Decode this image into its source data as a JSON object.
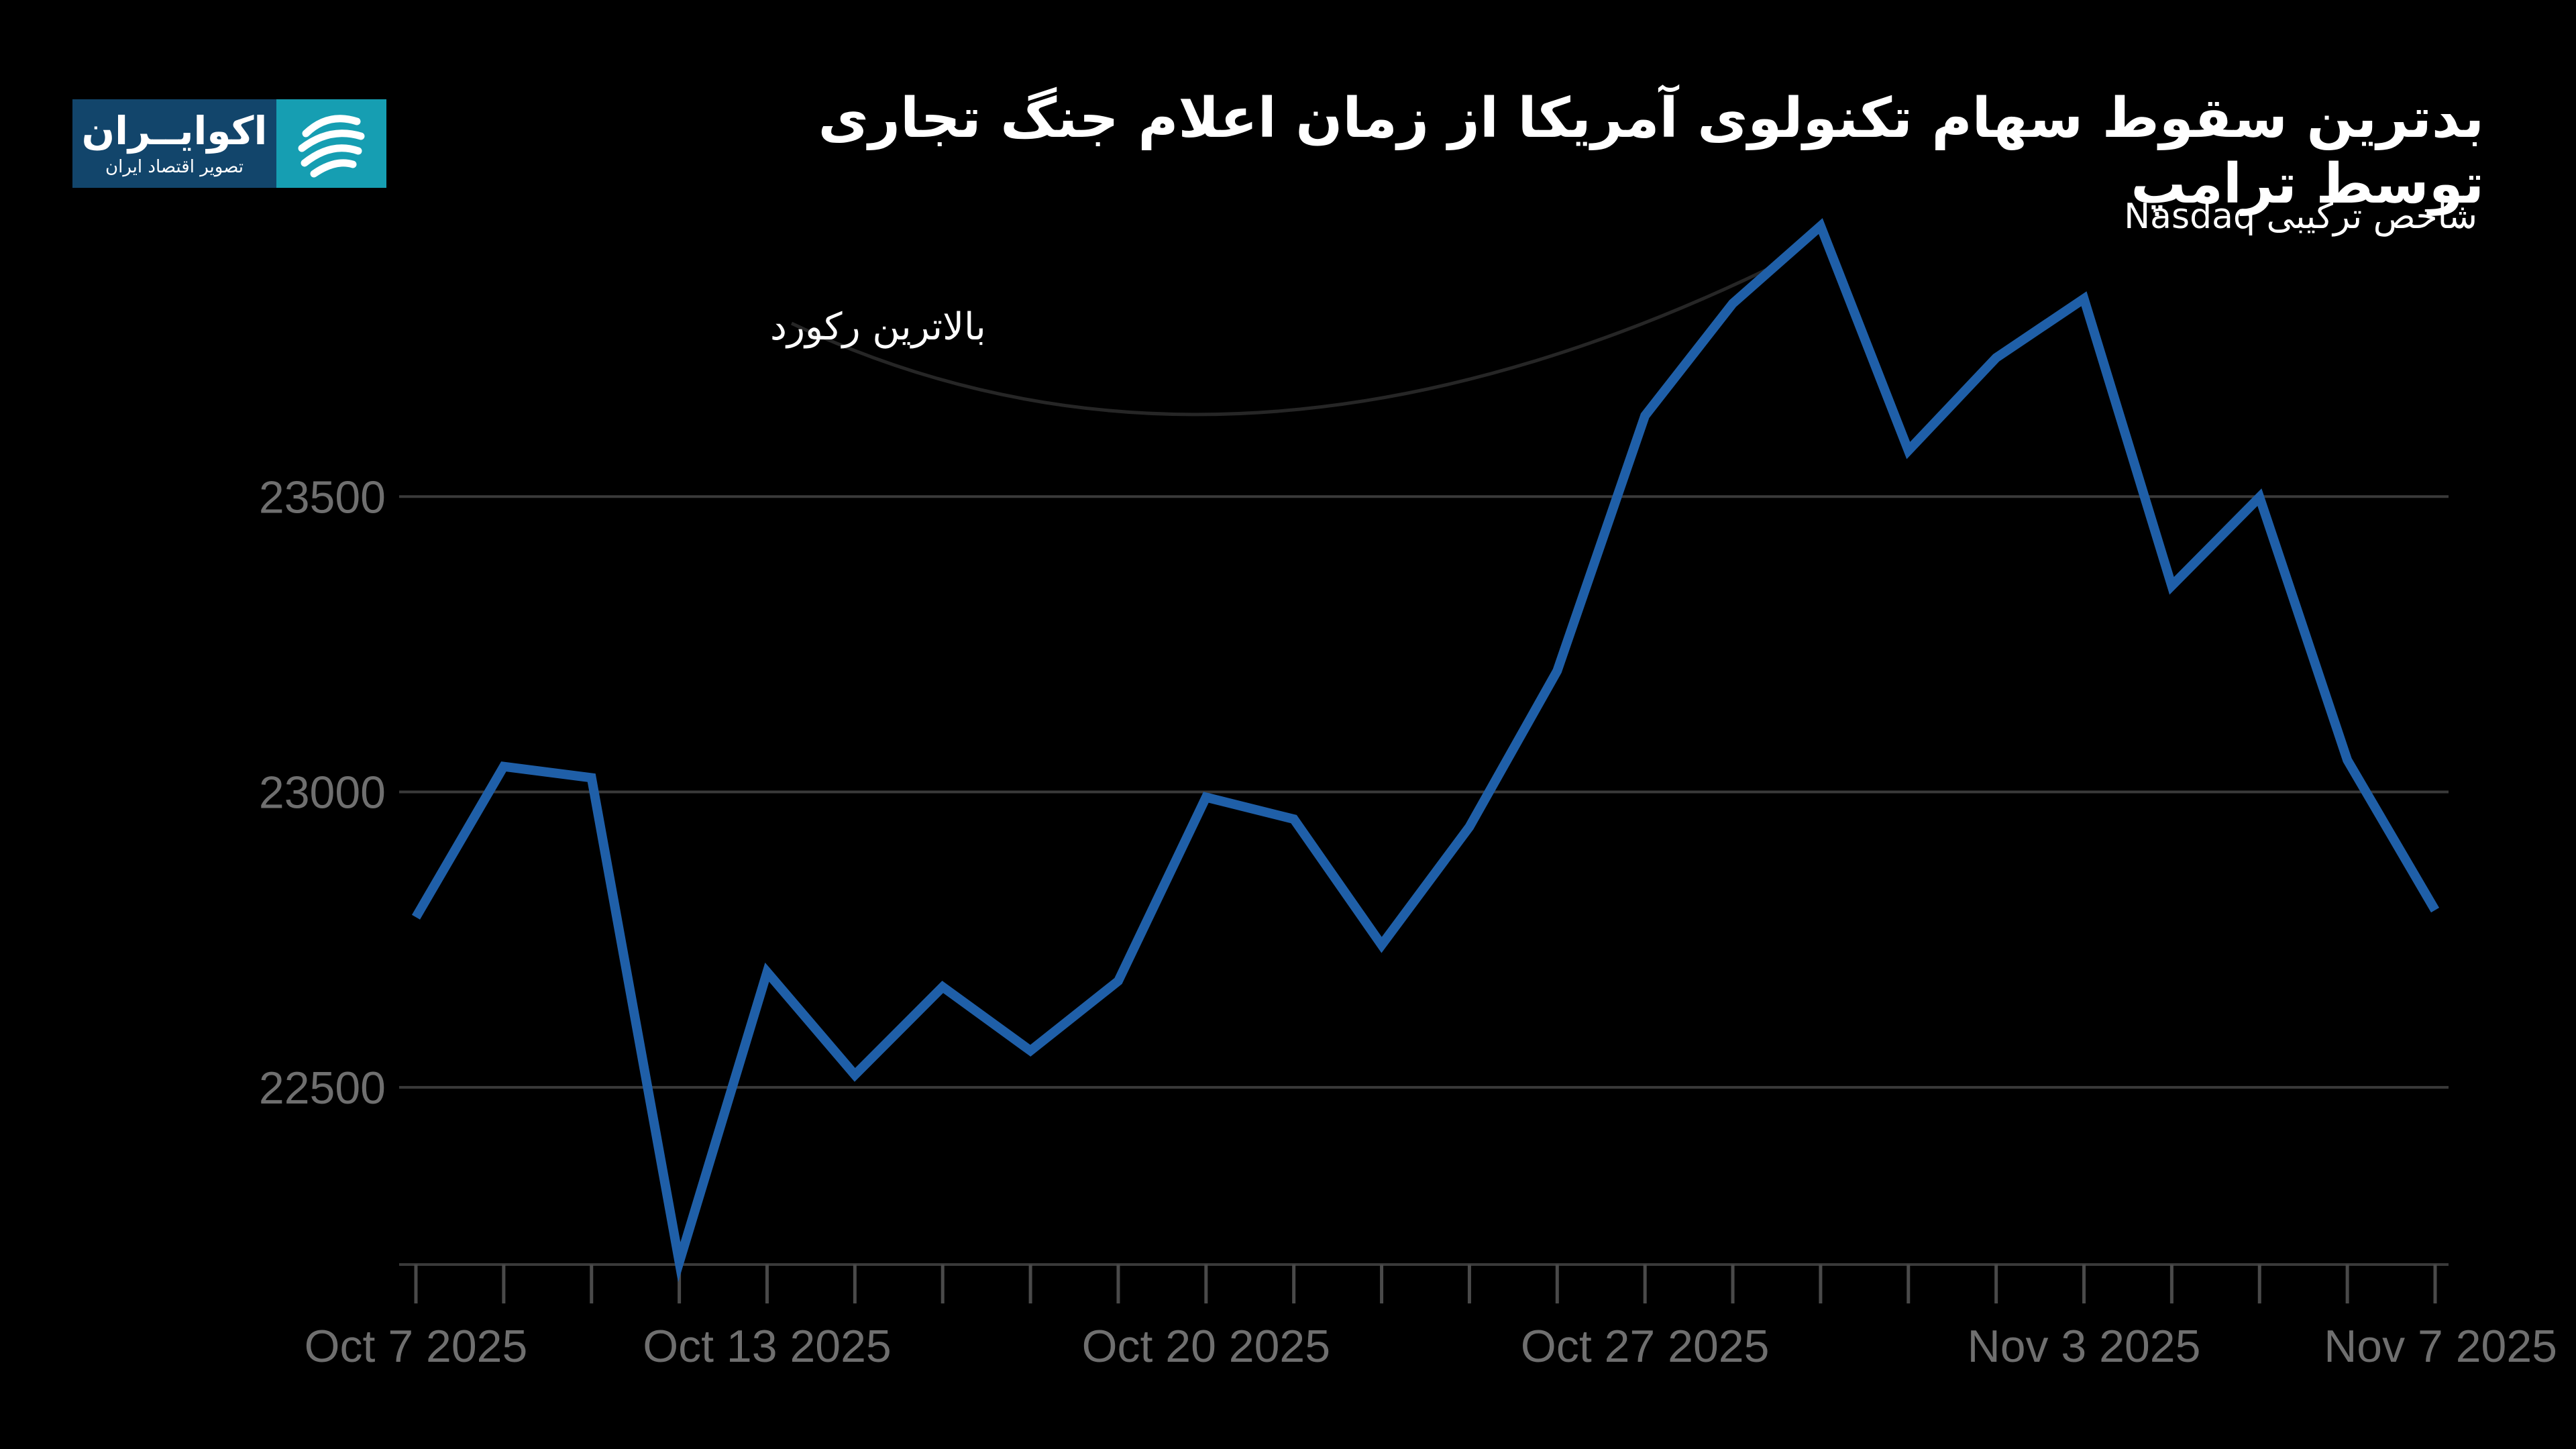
{
  "title": "بدترین سقوط سهام تکنولوی آمریکا از زمان اعلام جنگ تجاری توسط ترامپ",
  "subtitle": "شاخص ترکیبی Nasdaq",
  "logo": {
    "name": "اکوایــران",
    "tagline": "تصویر اقتصاد ایران",
    "icon": "swirl-logo-icon"
  },
  "colors": {
    "line": "#1f5fa8",
    "grid": "#3a3a3a",
    "tick_text": "#6f6f6f",
    "background": "#000000"
  },
  "chart_data": {
    "type": "line",
    "title": "بدترین سقوط سهام تکنولوی آمریکا از زمان اعلام جنگ تجاری توسط ترامپ",
    "subtitle": "شاخص ترکیبی Nasdaq",
    "xlabel": "",
    "ylabel": "",
    "x": [
      "2025-10-07",
      "2025-10-08",
      "2025-10-09",
      "2025-10-10",
      "2025-10-13",
      "2025-10-14",
      "2025-10-15",
      "2025-10-16",
      "2025-10-17",
      "2025-10-20",
      "2025-10-21",
      "2025-10-22",
      "2025-10-23",
      "2025-10-24",
      "2025-10-27",
      "2025-10-28",
      "2025-10-29",
      "2025-10-30",
      "2025-10-31",
      "2025-11-03",
      "2025-11-04",
      "2025-11-05",
      "2025-11-06",
      "2025-11-07"
    ],
    "values": [
      22788,
      23043,
      23024,
      22204,
      22695,
      22521,
      22670,
      22562,
      22680,
      22991,
      22954,
      22741,
      22941,
      23205,
      23637,
      23827,
      23958,
      23578,
      23735,
      23835,
      23349,
      23499,
      23054,
      22800
    ],
    "ylim": [
      22200,
      24000
    ],
    "yticks": [
      22500,
      23000,
      23500
    ],
    "yticks_labels": [
      "22500",
      "23000",
      "23500"
    ],
    "xticks_labels": [
      "Oct 7 2025",
      "Oct 13 2025",
      "Oct 20 2025",
      "Oct 27 2025",
      "Nov 3 2025",
      "Nov 7 2025"
    ],
    "xtick_label_index": [
      0,
      4,
      9,
      14,
      19,
      23
    ],
    "grid": true,
    "annotations": [
      {
        "text": "بالاترین رکورد",
        "target_index": 16
      }
    ]
  }
}
